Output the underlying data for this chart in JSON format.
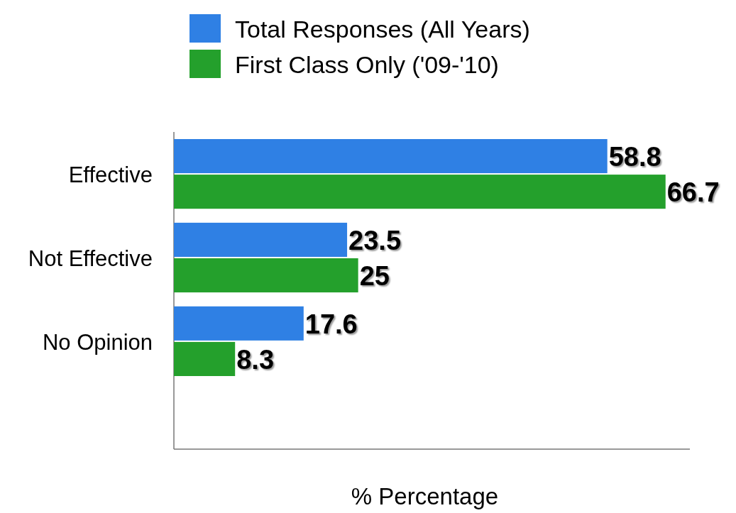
{
  "chart_data": {
    "type": "bar",
    "orientation": "horizontal",
    "categories": [
      "Effective",
      "Not Effective",
      "No Opinion"
    ],
    "series": [
      {
        "name": "Total Responses (All Years)",
        "color": "#2f80e4",
        "values": [
          58.8,
          23.5,
          17.6
        ]
      },
      {
        "name": "First Class Only ('09-'10)",
        "color": "#24a02c",
        "values": [
          66.7,
          25,
          8.3
        ]
      }
    ],
    "xlim": [
      0,
      70
    ],
    "xlabel": "% Percentage",
    "data_labels": true,
    "legend": "top",
    "tick_labels": "y"
  }
}
